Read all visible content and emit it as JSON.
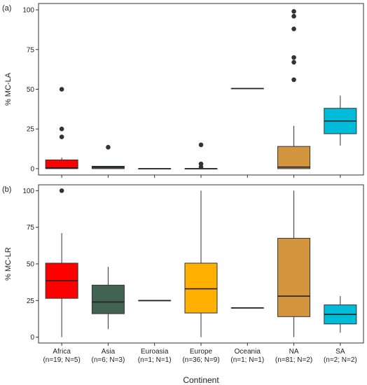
{
  "chart_data": [
    {
      "type": "box",
      "panel": "(a)",
      "ylabel": "% MC-LA",
      "xlabel": "",
      "ylim": [
        -4,
        104
      ],
      "yticks": [
        0,
        25,
        50,
        75,
        100
      ],
      "grid": false,
      "boxes": [
        {
          "category": "Africa",
          "color": "#ff0000",
          "whisker_low": 0,
          "q1": 0,
          "median": 0.5,
          "q3": 5.5,
          "whisker_high": 7,
          "outliers": [
            20,
            25,
            50
          ]
        },
        {
          "category": "Asia",
          "color": "#426352",
          "whisker_low": 0,
          "q1": 0,
          "median": 1,
          "q3": 1.5,
          "whisker_high": 1.5,
          "outliers": [
            13.5
          ]
        },
        {
          "category": "Euroasia",
          "color": "#426352",
          "whisker_low": 0,
          "q1": 0,
          "median": 0,
          "q3": 0,
          "whisker_high": 0,
          "outliers": []
        },
        {
          "category": "Europe",
          "color": "#ffa500",
          "whisker_low": 0,
          "q1": 0,
          "median": 0,
          "q3": 0,
          "whisker_high": 0,
          "outliers": [
            1,
            3,
            15
          ]
        },
        {
          "category": "Oceania",
          "color": "#ffa500",
          "whisker_low": 50.5,
          "q1": 50.5,
          "median": 50.5,
          "q3": 50.5,
          "whisker_high": 50.5,
          "outliers": []
        },
        {
          "category": "NA",
          "color": "#d4953f",
          "whisker_low": 0,
          "q1": 0,
          "median": 1,
          "q3": 14,
          "whisker_high": 27,
          "outliers": [
            56,
            67,
            70,
            88,
            96,
            99
          ]
        },
        {
          "category": "SA",
          "color": "#00bcd8",
          "whisker_low": 14.5,
          "q1": 22,
          "median": 30,
          "q3": 38,
          "whisker_high": 46,
          "outliers": []
        }
      ]
    },
    {
      "type": "box",
      "panel": "(b)",
      "ylabel": "% MC-LR",
      "xlabel": "Continent",
      "ylim": [
        -4,
        104
      ],
      "yticks": [
        0,
        25,
        50,
        75,
        100
      ],
      "grid": false,
      "categories": [
        "Africa",
        "Asia",
        "Euroasia",
        "Europe",
        "Oceania",
        "NA",
        "SA"
      ],
      "category_counts": [
        "(n=19; N=5)",
        "(n=6; N=3)",
        "(n=1; N=1)",
        "(n=36; N=9)",
        "(n=1; N=1)",
        "(n=81; N=2)",
        "(n=2; N=2)"
      ],
      "boxes": [
        {
          "category": "Africa",
          "color": "#ff0000",
          "whisker_low": 0,
          "q1": 26.5,
          "median": 38.5,
          "q3": 50.5,
          "whisker_high": 71,
          "outliers": [
            100
          ]
        },
        {
          "category": "Asia",
          "color": "#426352",
          "whisker_low": 5.5,
          "q1": 16,
          "median": 24,
          "q3": 35.5,
          "whisker_high": 48,
          "outliers": []
        },
        {
          "category": "Euroasia",
          "color": "#426352",
          "whisker_low": 25,
          "q1": 25,
          "median": 25,
          "q3": 25,
          "whisker_high": 25,
          "outliers": []
        },
        {
          "category": "Europe",
          "color": "#ffb000",
          "whisker_low": 0,
          "q1": 16.5,
          "median": 33,
          "q3": 50.5,
          "whisker_high": 100,
          "outliers": []
        },
        {
          "category": "Oceania",
          "color": "#ffb000",
          "whisker_low": 20,
          "q1": 20,
          "median": 20,
          "q3": 20,
          "whisker_high": 20,
          "outliers": []
        },
        {
          "category": "NA",
          "color": "#d4953f",
          "whisker_low": 0,
          "q1": 14,
          "median": 28,
          "q3": 67.5,
          "whisker_high": 100,
          "outliers": []
        },
        {
          "category": "SA",
          "color": "#00bcd8",
          "whisker_low": 3,
          "q1": 9,
          "median": 15.5,
          "q3": 22,
          "whisker_high": 28,
          "outliers": []
        }
      ]
    }
  ]
}
